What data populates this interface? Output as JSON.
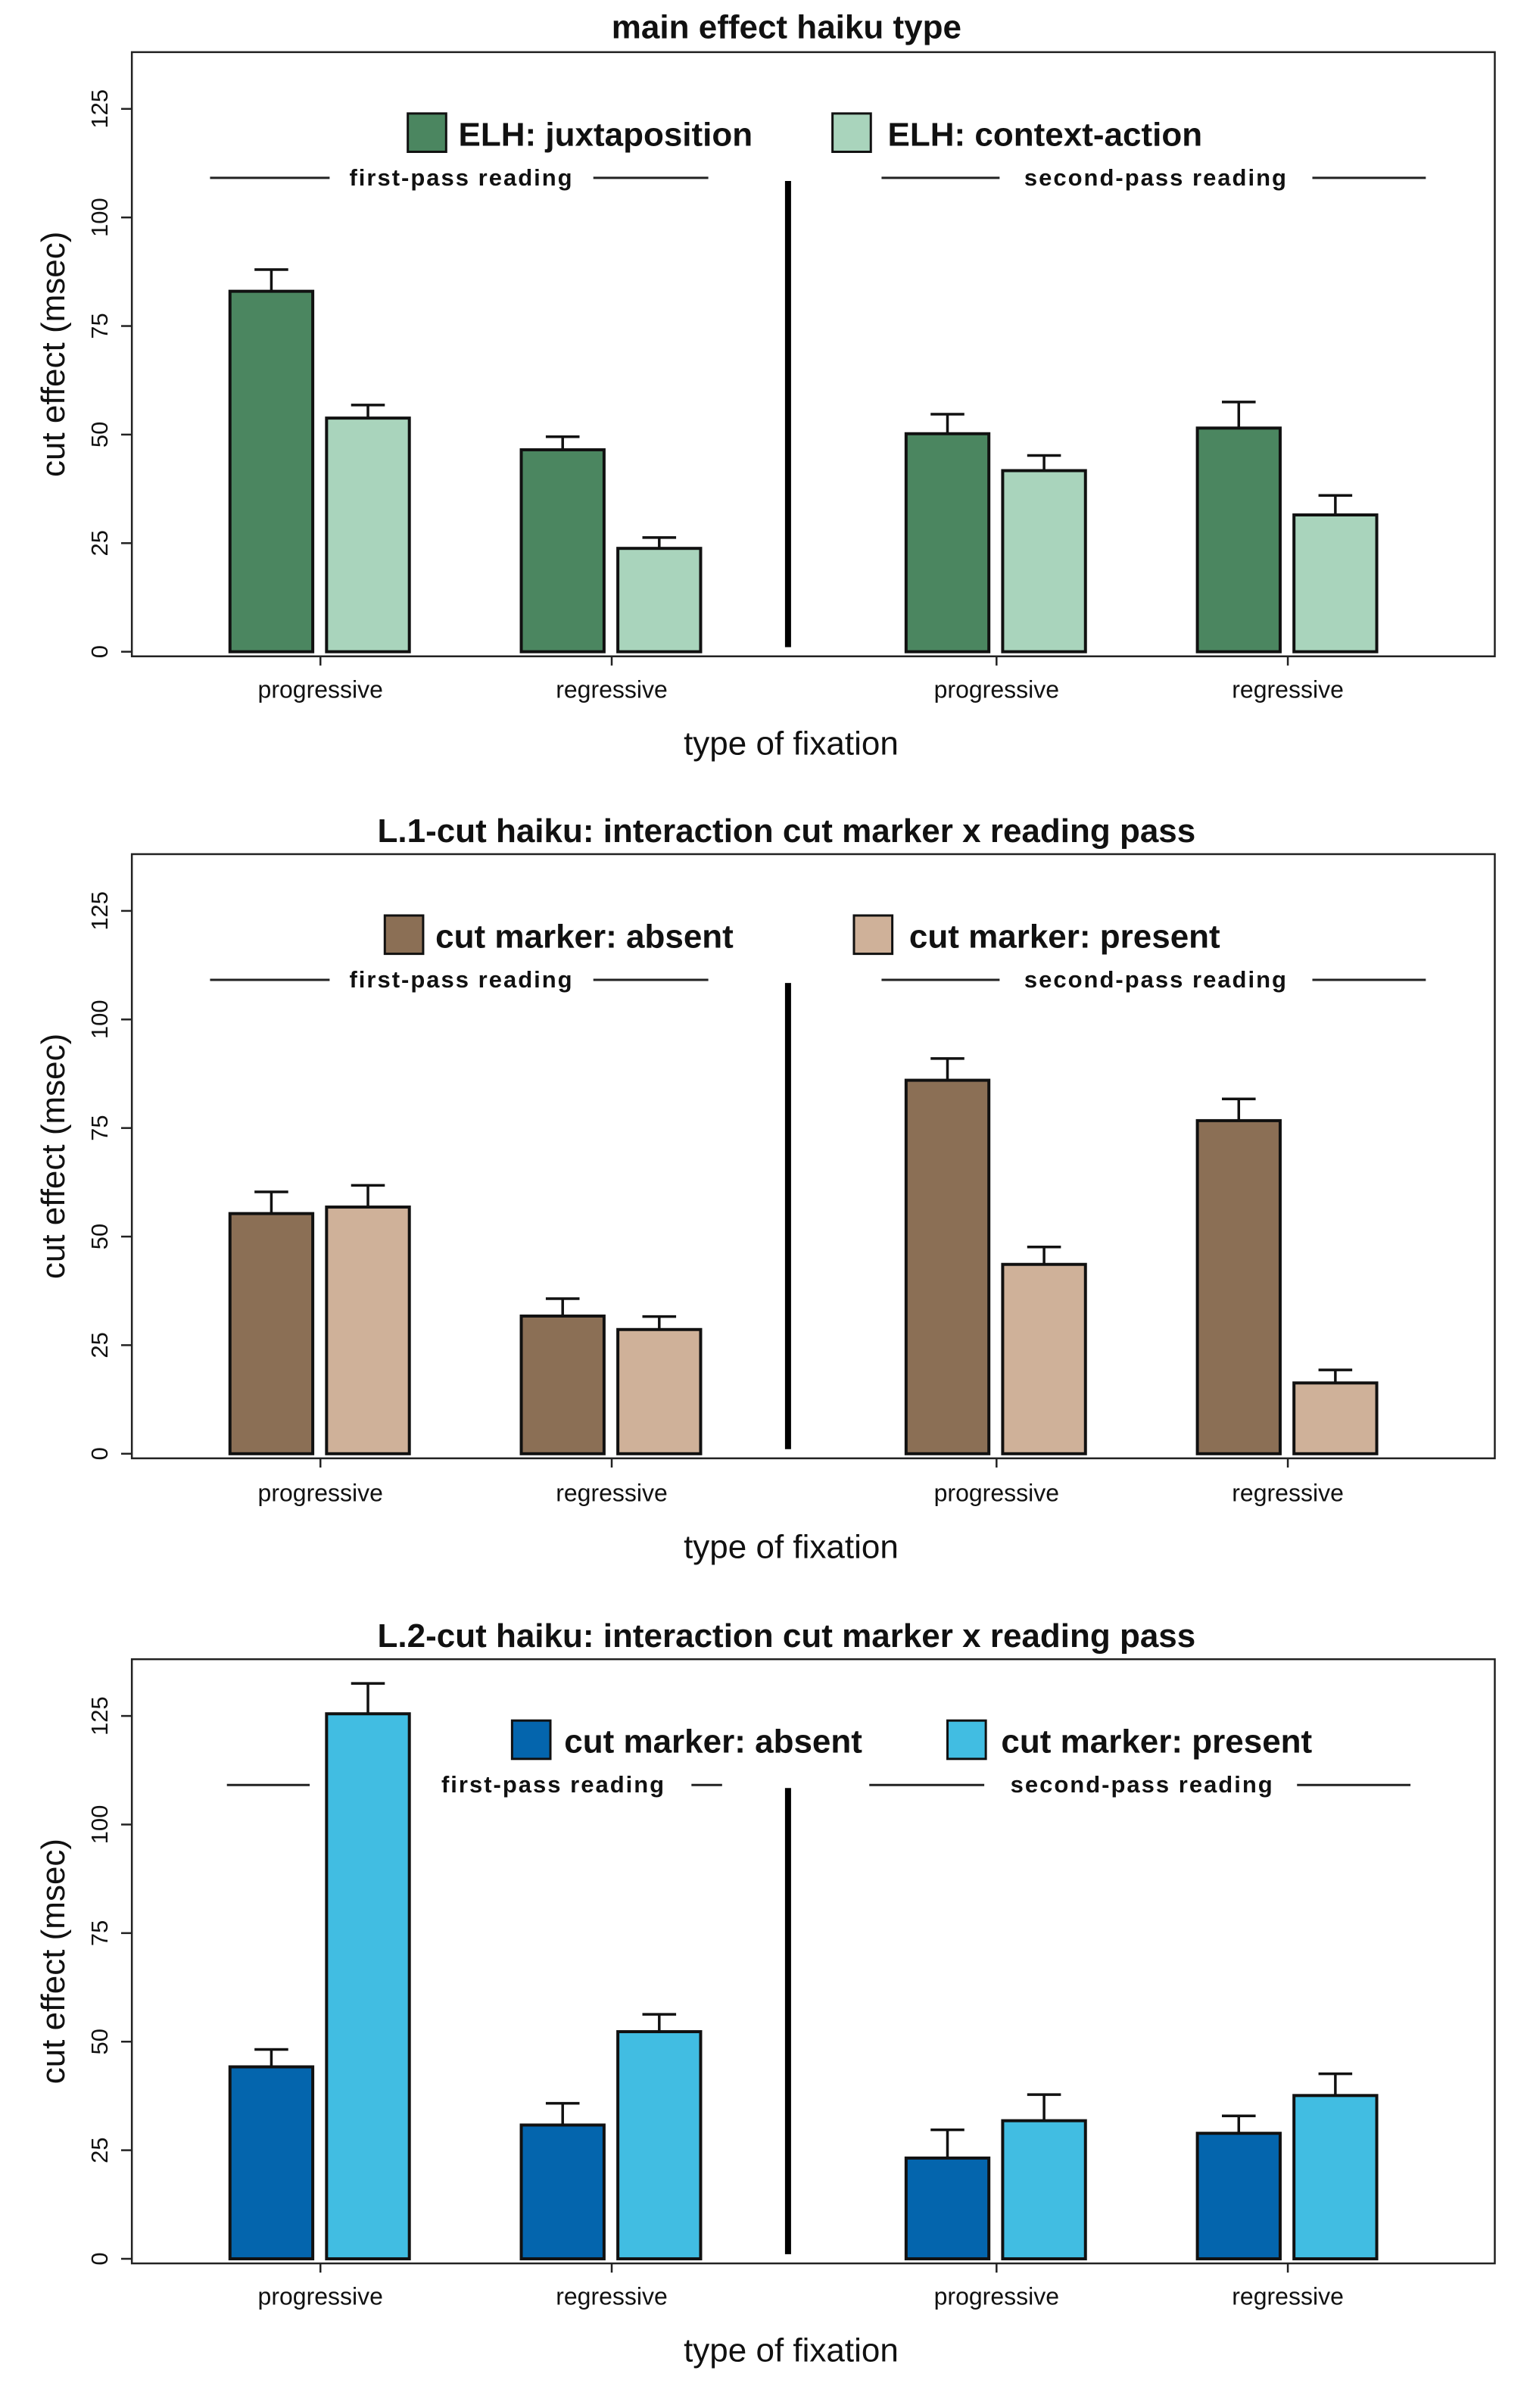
{
  "x_axis_label": "type of fixation",
  "y_axis_label": "cut effect (msec)",
  "pass_labels": [
    "first-pass reading",
    "second-pass reading"
  ],
  "chart_data": [
    {
      "type": "bar",
      "title": "main effect haiku type",
      "xlabel": "type of fixation",
      "ylabel": "cut effect (msec)",
      "ylim": [
        0,
        135
      ],
      "yticks": [
        0,
        25,
        50,
        75,
        100,
        125
      ],
      "legend_position": "top-center",
      "groups": [
        "first-pass reading",
        "second-pass reading"
      ],
      "categories": [
        "progressive",
        "regressive",
        "progressive",
        "regressive"
      ],
      "series": [
        {
          "name": "ELH: juxtaposition",
          "color": "#4b8660",
          "values": [
            83,
            46.5,
            50.2,
            51.5
          ],
          "error": [
            5,
            3,
            4.5,
            6
          ]
        },
        {
          "name": "ELH: context-action",
          "color": "#a9d4bc",
          "values": [
            53.8,
            23.8,
            41.7,
            31.5
          ],
          "error": [
            3,
            2.5,
            3.5,
            4.5
          ]
        }
      ]
    },
    {
      "type": "bar",
      "title": "L.1-cut haiku: interaction cut marker x reading pass",
      "xlabel": "type of fixation",
      "ylabel": "cut effect (msec)",
      "ylim": [
        0,
        135
      ],
      "yticks": [
        0,
        25,
        50,
        75,
        100,
        125
      ],
      "legend_position": "top-center",
      "groups": [
        "first-pass reading",
        "second-pass reading"
      ],
      "categories": [
        "progressive",
        "regressive",
        "progressive",
        "regressive"
      ],
      "series": [
        {
          "name": "cut marker: absent",
          "color": "#8b6f55",
          "values": [
            55.3,
            31.7,
            86,
            76.7
          ],
          "error": [
            5,
            4,
            5,
            5
          ]
        },
        {
          "name": "cut marker: present",
          "color": "#cfb199",
          "values": [
            56.8,
            28.6,
            43.6,
            16.3
          ],
          "error": [
            5,
            3,
            4,
            3
          ]
        }
      ]
    },
    {
      "type": "bar",
      "title": "L.2-cut haiku: interaction cut marker x reading pass",
      "xlabel": "type of fixation",
      "ylabel": "cut effect (msec)",
      "ylim": [
        0,
        135
      ],
      "yticks": [
        0,
        25,
        50,
        75,
        100,
        125
      ],
      "legend_position": "top-center",
      "groups": [
        "first-pass reading",
        "second-pass reading"
      ],
      "categories": [
        "progressive",
        "regressive",
        "progressive",
        "regressive"
      ],
      "series": [
        {
          "name": "cut marker: absent",
          "color": "#0465ad",
          "values": [
            44.2,
            30.8,
            23.2,
            28.9
          ],
          "error": [
            4,
            5,
            6.5,
            4
          ]
        },
        {
          "name": "cut marker: present",
          "color": "#41bde2",
          "values": [
            125.5,
            52.3,
            31.8,
            37.6
          ],
          "error": [
            7,
            4,
            6,
            5
          ]
        }
      ]
    }
  ]
}
